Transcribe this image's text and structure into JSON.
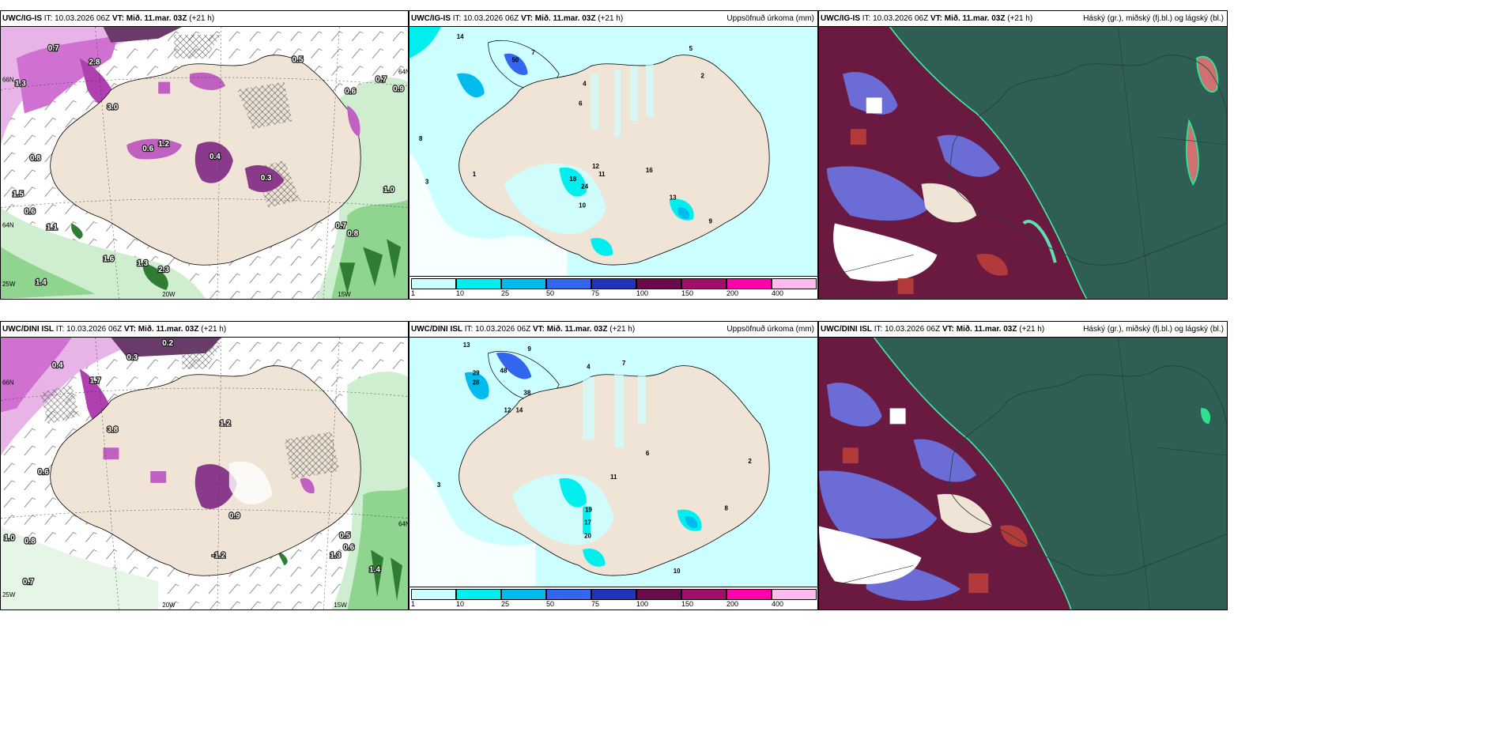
{
  "rows": [
    {
      "panels": [
        {
          "model": "UWC/IG-IS",
          "issue": "IT: 10.03.2026 06Z",
          "vt_label": "VT: Mið. 11.mar. 03Z",
          "lead": "(+21 h)",
          "right_title": ""
        },
        {
          "model": "UWC/IG-IS",
          "issue": "IT: 10.03.2026 06Z",
          "vt_label": "VT: Mið. 11.mar. 03Z",
          "lead": "(+21 h)",
          "right_title": "Uppsöfnuð úrkoma (mm)"
        },
        {
          "model": "UWC/IG-IS",
          "issue": "IT: 10.03.2026 06Z",
          "vt_label": "VT: Mið. 11.mar. 03Z",
          "lead": "(+21 h)",
          "right_title": "Háský (gr.), miðský (fj.bl.) og lágský (bl.)"
        }
      ]
    },
    {
      "panels": [
        {
          "model": "UWC/DINI ISL",
          "issue": "IT: 10.03.2026 06Z",
          "vt_label": "VT: Mið. 11.mar. 03Z",
          "lead": "(+21 h)",
          "right_title": ""
        },
        {
          "model": "UWC/DINI ISL",
          "issue": "IT: 10.03.2026 06Z",
          "vt_label": "VT: Mið. 11.mar. 03Z",
          "lead": "(+21 h)",
          "right_title": "Uppsöfnuð úrkoma (mm)"
        },
        {
          "model": "UWC/DINI ISL",
          "issue": "IT: 10.03.2026 06Z",
          "vt_label": "VT: Mið. 11.mar. 03Z",
          "lead": "(+21 h)",
          "right_title": "Háský (gr.), miðský (fj.bl.) og lágský (bl.)"
        }
      ]
    }
  ],
  "colorbar": {
    "ticks": [
      "1",
      "10",
      "25",
      "50",
      "75",
      "100",
      "150",
      "200",
      "400"
    ],
    "colors": [
      "#ccffff",
      "#00eeee",
      "#00bbee",
      "#3366ee",
      "#2233bb",
      "#6a0a4a",
      "#a0106a",
      "#ff00aa",
      "#ffbbee"
    ]
  },
  "map_labels": {
    "lat1": "66N",
    "lat2": "64N",
    "lon1": "25W",
    "lon2": "20W",
    "lon3": "15W",
    "lon1_r": "25W",
    "lon3_r": "15W",
    "lat_east": "64N",
    "lat_east2": "64N"
  },
  "top_left_values": [
    "0.7",
    "2.8",
    "3.0",
    "1.3",
    "0.5",
    "0.6",
    "0.8",
    "0.4",
    "1.2",
    "0.3",
    "0.7",
    "0.6",
    "0.9",
    "1.0",
    "1.4",
    "1.6",
    "1.3",
    "2.3",
    "0.6",
    "1.1",
    "0.7",
    "0.8",
    "1.5"
  ],
  "top_mid_values": [
    "14",
    "50",
    "8",
    "7",
    "5",
    "3",
    "4",
    "6",
    "12",
    "18",
    "24",
    "10",
    "13",
    "16",
    "2",
    "11",
    "9",
    "1"
  ],
  "bot_left_values": [
    "0.2",
    "0.3",
    "0.4",
    "1.7",
    "1.2",
    "3.8",
    "0.6",
    "0.9",
    "-1.2",
    "1.0",
    "0.7",
    "0.8",
    "1.3",
    "1.4",
    "0.5",
    "0.6"
  ],
  "bot_mid_values": [
    "13",
    "9",
    "48",
    "38",
    "28",
    "29",
    "12",
    "14",
    "4",
    "7",
    "3",
    "19",
    "20",
    "17",
    "6",
    "2",
    "11",
    "8",
    "10"
  ]
}
